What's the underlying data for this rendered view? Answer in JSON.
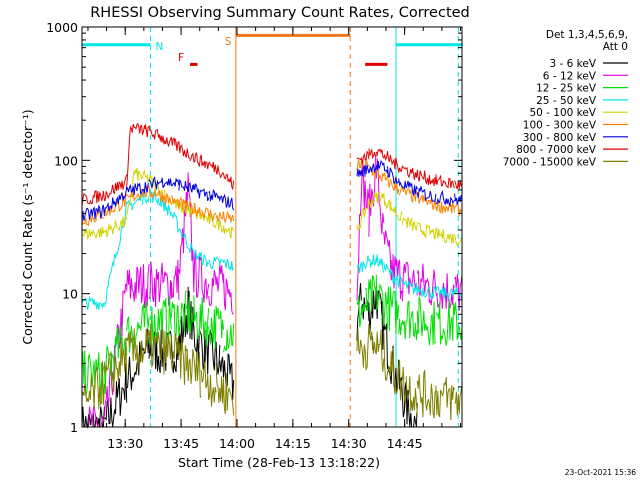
{
  "chart_data": {
    "type": "line",
    "title": "RHESSI Observing Summary Count Rates, Corrected",
    "xlabel": "Start Time (28-Feb-13 13:18:22)",
    "ylabel": "Corrected Count Rate (s⁻¹ detector⁻¹)",
    "x_unit": "minutes since 13:18:22",
    "xlim": [
      0,
      102
    ],
    "ylim": [
      1,
      1000
    ],
    "yscale": "log",
    "x_ticks": [
      {
        "t": 11.6,
        "label": "13:30"
      },
      {
        "t": 26.6,
        "label": "13:45"
      },
      {
        "t": 41.6,
        "label": "14:00"
      },
      {
        "t": 56.6,
        "label": "14:15"
      },
      {
        "t": 71.6,
        "label": "14:30"
      },
      {
        "t": 86.6,
        "label": "14:45"
      }
    ],
    "y_ticks": [
      {
        "v": 1,
        "label": "1"
      },
      {
        "v": 10,
        "label": "10"
      },
      {
        "v": 100,
        "label": "100"
      },
      {
        "v": 1000,
        "label": "1000"
      }
    ],
    "legend": {
      "placement": "top-right",
      "header": [
        "Det 1,3,4,5,6,9,",
        "Att 0"
      ]
    },
    "flags": [
      {
        "name": "N",
        "label": "N",
        "color": "#00e5e5",
        "segments": [
          [
            0,
            18.4
          ],
          [
            84.3,
            102
          ]
        ],
        "y": 736
      },
      {
        "name": "F",
        "label": "F",
        "color": "#e00000",
        "segments": [
          [
            29,
            31
          ],
          [
            76,
            82
          ]
        ],
        "y": 524
      },
      {
        "name": "S",
        "label": "S",
        "color": "#f07a1a",
        "segments": [
          [
            41.3,
            72
          ]
        ],
        "y": 866
      }
    ],
    "vertical_lines": [
      {
        "t": 18.4,
        "color": "#00e5e5",
        "style": "dashed"
      },
      {
        "t": 41.3,
        "color": "#f07a1a",
        "style": "solid"
      },
      {
        "t": 72.0,
        "color": "#f07a1a",
        "style": "dashed"
      },
      {
        "t": 84.3,
        "color": "#00e5e5",
        "style": "solid"
      },
      {
        "t": 101.0,
        "color": "#00e5e5",
        "style": "dashed"
      }
    ],
    "series": [
      {
        "name": "3 - 6 keV",
        "color": "#000000",
        "values": [
          [
            0,
            1
          ],
          [
            6,
            1
          ],
          [
            12,
            2.2
          ],
          [
            18,
            4
          ],
          [
            22,
            3.5
          ],
          [
            26,
            4
          ],
          [
            28.5,
            8
          ],
          [
            30,
            5
          ],
          [
            33,
            3.8
          ],
          [
            37,
            3
          ],
          [
            40.7,
            2
          ],
          [
            73.8,
            6
          ],
          [
            75,
            9
          ],
          [
            77,
            7
          ],
          [
            79,
            10
          ],
          [
            80.5,
            6
          ],
          [
            82,
            4
          ],
          [
            84,
            2.5
          ],
          [
            86,
            1.8
          ],
          [
            88,
            1.2
          ],
          [
            90,
            1
          ]
        ]
      },
      {
        "name": "6 - 12 keV",
        "color": "#e000e0",
        "values": [
          [
            0,
            1
          ],
          [
            6,
            1
          ],
          [
            12,
            11
          ],
          [
            18,
            12
          ],
          [
            24,
            11.5
          ],
          [
            26,
            13
          ],
          [
            28.5,
            60
          ],
          [
            30,
            14
          ],
          [
            34,
            12
          ],
          [
            38,
            11
          ],
          [
            40.7,
            10
          ],
          [
            73.8,
            10
          ],
          [
            75,
            80
          ],
          [
            77,
            40
          ],
          [
            79,
            90
          ],
          [
            81,
            25
          ],
          [
            83,
            15
          ],
          [
            86,
            13
          ],
          [
            90,
            12
          ],
          [
            95,
            11
          ],
          [
            100,
            10.5
          ],
          [
            102,
            10
          ]
        ]
      },
      {
        "name": "12 - 25 keV",
        "color": "#00e000",
        "values": [
          [
            0,
            2.5
          ],
          [
            6,
            2.5
          ],
          [
            12,
            5
          ],
          [
            18,
            6
          ],
          [
            24,
            6.5
          ],
          [
            28,
            7
          ],
          [
            30,
            6.5
          ],
          [
            34,
            6
          ],
          [
            38,
            5.5
          ],
          [
            40.7,
            5
          ],
          [
            73.8,
            7
          ],
          [
            76,
            8
          ],
          [
            79,
            10
          ],
          [
            82,
            8
          ],
          [
            85,
            7
          ],
          [
            90,
            6.5
          ],
          [
            95,
            6
          ],
          [
            100,
            6
          ],
          [
            102,
            6
          ]
        ]
      },
      {
        "name": "25 - 50 keV",
        "color": "#00e5e5",
        "values": [
          [
            0,
            8.5
          ],
          [
            6,
            8.5
          ],
          [
            12,
            44
          ],
          [
            16,
            52
          ],
          [
            18,
            55
          ],
          [
            21,
            50
          ],
          [
            24,
            40
          ],
          [
            27,
            28
          ],
          [
            30,
            20
          ],
          [
            34,
            17
          ],
          [
            38,
            17
          ],
          [
            40.7,
            16
          ],
          [
            73.8,
            15
          ],
          [
            76,
            17
          ],
          [
            79,
            18
          ],
          [
            81,
            16
          ],
          [
            84,
            13
          ],
          [
            88,
            11
          ],
          [
            92,
            10.5
          ],
          [
            97,
            10
          ],
          [
            102,
            10
          ]
        ]
      },
      {
        "name": "50 - 100 keV",
        "color": "#d2d200",
        "values": [
          [
            0,
            28
          ],
          [
            6,
            29
          ],
          [
            12,
            35
          ],
          [
            14,
            80
          ],
          [
            18,
            72
          ],
          [
            22,
            56
          ],
          [
            26,
            45
          ],
          [
            30,
            40
          ],
          [
            34,
            36
          ],
          [
            38,
            32
          ],
          [
            40.7,
            28
          ],
          [
            73.8,
            30
          ],
          [
            77,
            48
          ],
          [
            80,
            55
          ],
          [
            83,
            45
          ],
          [
            86,
            36
          ],
          [
            90,
            31
          ],
          [
            95,
            28
          ],
          [
            100,
            26
          ],
          [
            102,
            25
          ]
        ]
      },
      {
        "name": "100 - 300 keV",
        "color": "#ff8000",
        "values": [
          [
            0,
            35
          ],
          [
            6,
            40
          ],
          [
            12,
            50
          ],
          [
            16,
            58
          ],
          [
            20,
            57
          ],
          [
            24,
            50
          ],
          [
            28,
            45
          ],
          [
            32,
            42
          ],
          [
            36,
            38
          ],
          [
            40.7,
            36
          ],
          [
            73.8,
            90
          ],
          [
            76,
            92
          ],
          [
            79,
            80
          ],
          [
            82,
            70
          ],
          [
            85,
            60
          ],
          [
            90,
            52
          ],
          [
            95,
            46
          ],
          [
            100,
            43
          ],
          [
            102,
            42
          ]
        ]
      },
      {
        "name": "300 - 800 keV",
        "color": "#0000e0",
        "values": [
          [
            0,
            38
          ],
          [
            6,
            42
          ],
          [
            12,
            58
          ],
          [
            18,
            65
          ],
          [
            22,
            70
          ],
          [
            26,
            66
          ],
          [
            30,
            60
          ],
          [
            34,
            55
          ],
          [
            38,
            50
          ],
          [
            40.7,
            47
          ],
          [
            73.8,
            78
          ],
          [
            76,
            84
          ],
          [
            79,
            92
          ],
          [
            82,
            85
          ],
          [
            85,
            68
          ],
          [
            90,
            58
          ],
          [
            95,
            53
          ],
          [
            100,
            51
          ],
          [
            102,
            50
          ]
        ]
      },
      {
        "name": "800 - 7000 keV",
        "color": "#e00000",
        "values": [
          [
            0,
            50
          ],
          [
            6,
            55
          ],
          [
            12,
            70
          ],
          [
            13,
            175
          ],
          [
            17,
            168
          ],
          [
            21,
            150
          ],
          [
            25,
            130
          ],
          [
            29,
            110
          ],
          [
            33,
            95
          ],
          [
            37,
            85
          ],
          [
            40.7,
            65
          ],
          [
            73.8,
            100
          ],
          [
            77,
            110
          ],
          [
            79,
            120
          ],
          [
            82,
            105
          ],
          [
            85,
            90
          ],
          [
            90,
            78
          ],
          [
            95,
            70
          ],
          [
            100,
            66
          ],
          [
            102,
            65
          ]
        ]
      },
      {
        "name": "7000 - 15000 keV",
        "color": "#808000",
        "values": [
          [
            0,
            1.4
          ],
          [
            6,
            2.2
          ],
          [
            12,
            3.5
          ],
          [
            18,
            4
          ],
          [
            24,
            3.6
          ],
          [
            28,
            3
          ],
          [
            32,
            2.5
          ],
          [
            36,
            2
          ],
          [
            40.7,
            1.7
          ],
          [
            73.8,
            3.8
          ],
          [
            78,
            4.2
          ],
          [
            81,
            3.5
          ],
          [
            84,
            2.5
          ],
          [
            87,
            2
          ],
          [
            90,
            1.8
          ],
          [
            95,
            1.7
          ],
          [
            100,
            1.6
          ],
          [
            102,
            1.6
          ]
        ]
      }
    ],
    "gap": [
      41.3,
      73.8
    ]
  },
  "footer": {
    "timestamp": "23-Oct-2021 15:36"
  }
}
